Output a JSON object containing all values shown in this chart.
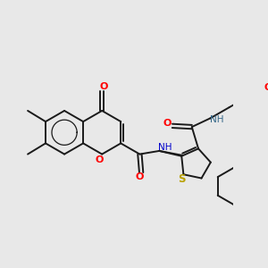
{
  "bg": "#e8e8e8",
  "lc": "#1a1a1a",
  "red": "#ff0000",
  "blue": "#0000cc",
  "yellow": "#b8a000",
  "lw": 1.4,
  "figsize": [
    3.0,
    3.0
  ],
  "dpi": 100,
  "xlim": [
    0,
    300
  ],
  "ylim": [
    0,
    300
  ]
}
